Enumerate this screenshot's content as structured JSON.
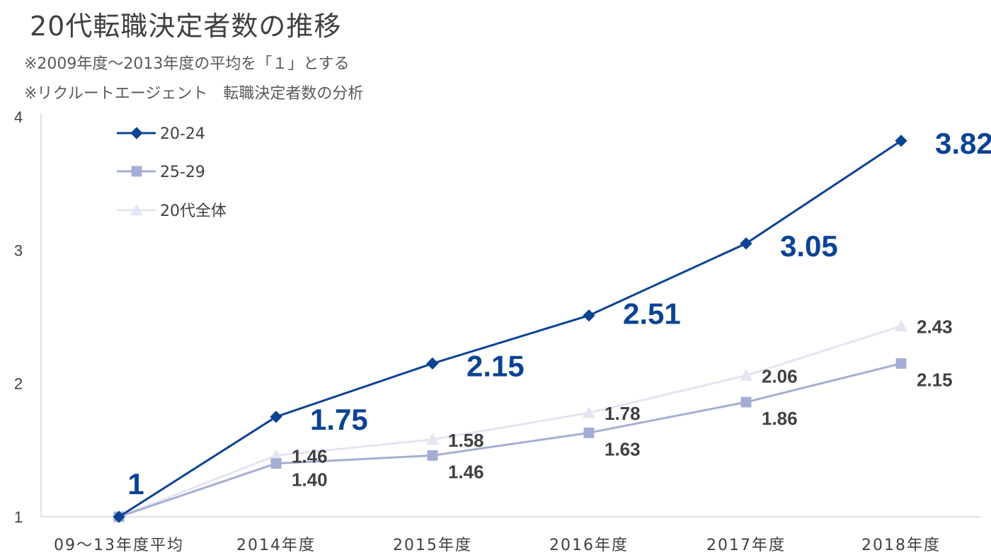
{
  "title": "20代転職決定者数の推移",
  "notes": [
    "※2009年度～2013年度の平均を「１」とする",
    "※リクルートエージェント　転職決定者数の分析"
  ],
  "chart_data": {
    "type": "line",
    "categories": [
      "09～13年度平均",
      "2014年度",
      "2015年度",
      "2016年度",
      "2017年度",
      "2018年度"
    ],
    "ylim": [
      1,
      4
    ],
    "yticks": [
      1,
      2,
      3,
      4
    ],
    "grid": false,
    "legend_position": "top-left",
    "series": [
      {
        "name": "20-24",
        "values": [
          1,
          1.75,
          2.15,
          2.51,
          3.05,
          3.82
        ],
        "labels": [
          "1",
          "1.75",
          "2.15",
          "2.51",
          "3.05",
          "3.82"
        ],
        "color": "#0b4394",
        "marker": "diamond"
      },
      {
        "name": "25-29",
        "values": [
          1,
          1.4,
          1.46,
          1.63,
          1.86,
          2.15
        ],
        "labels": [
          "",
          "1.40",
          "1.46",
          "1.63",
          "1.86",
          "2.15"
        ],
        "color": "#a6add4",
        "marker": "square"
      },
      {
        "name": "20代全体",
        "values": [
          1,
          1.46,
          1.58,
          1.78,
          2.06,
          2.43
        ],
        "labels": [
          "",
          "1.46",
          "1.58",
          "1.78",
          "2.06",
          "2.43"
        ],
        "color": "#e3e5f2",
        "marker": "triangle"
      }
    ]
  }
}
